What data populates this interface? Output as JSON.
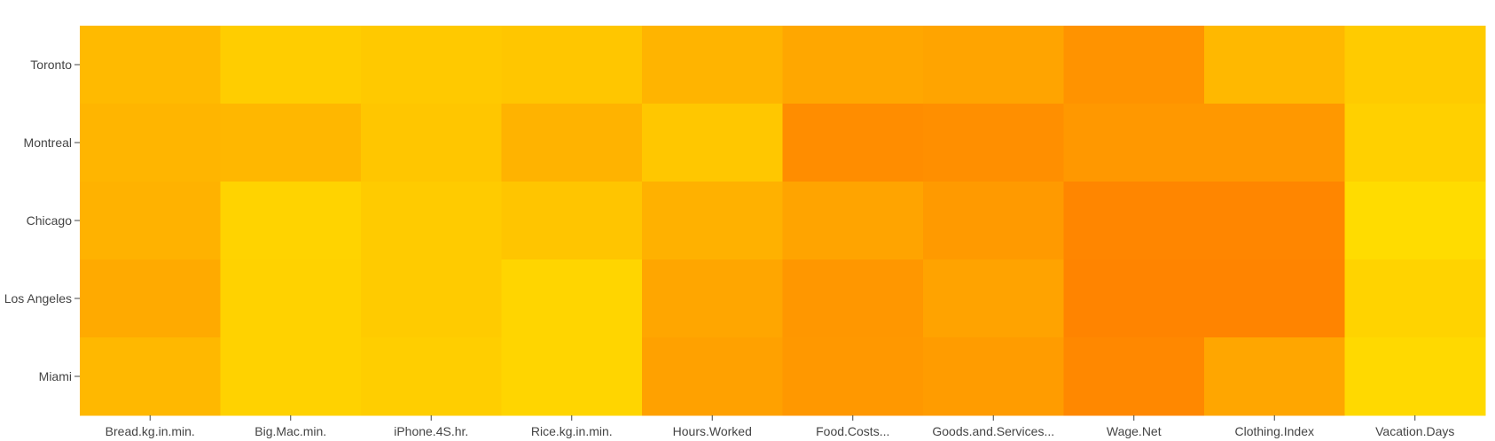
{
  "chart_data": {
    "type": "heatmap",
    "title": "",
    "xlabel": "",
    "ylabel": "",
    "x": [
      "Bread.kg.in.min.",
      "Big.Mac.min.",
      "iPhone.4S.hr.",
      "Rice.kg.in.min.",
      "Hours.Worked",
      "Food.Costs...",
      "Goods.and.Services...",
      "Wage.Net",
      "Clothing.Index",
      "Vacation.Days"
    ],
    "y": [
      "Toronto",
      "Montreal",
      "Chicago",
      "Los Angeles",
      "Miami"
    ],
    "z": [
      [
        0.38,
        0.18,
        0.22,
        0.26,
        0.45,
        0.58,
        0.62,
        0.8,
        0.4,
        0.2
      ],
      [
        0.44,
        0.42,
        0.26,
        0.46,
        0.24,
        0.86,
        0.84,
        0.74,
        0.74,
        0.15
      ],
      [
        0.47,
        0.12,
        0.2,
        0.27,
        0.48,
        0.62,
        0.72,
        0.94,
        0.94,
        0.02
      ],
      [
        0.55,
        0.13,
        0.2,
        0.1,
        0.6,
        0.76,
        0.63,
        0.96,
        0.96,
        0.12
      ],
      [
        0.4,
        0.13,
        0.17,
        0.1,
        0.65,
        0.74,
        0.7,
        0.92,
        0.6,
        0.05
      ]
    ],
    "colorscale": [
      "#ffde00",
      "#ff8000"
    ],
    "colorbar": false
  }
}
